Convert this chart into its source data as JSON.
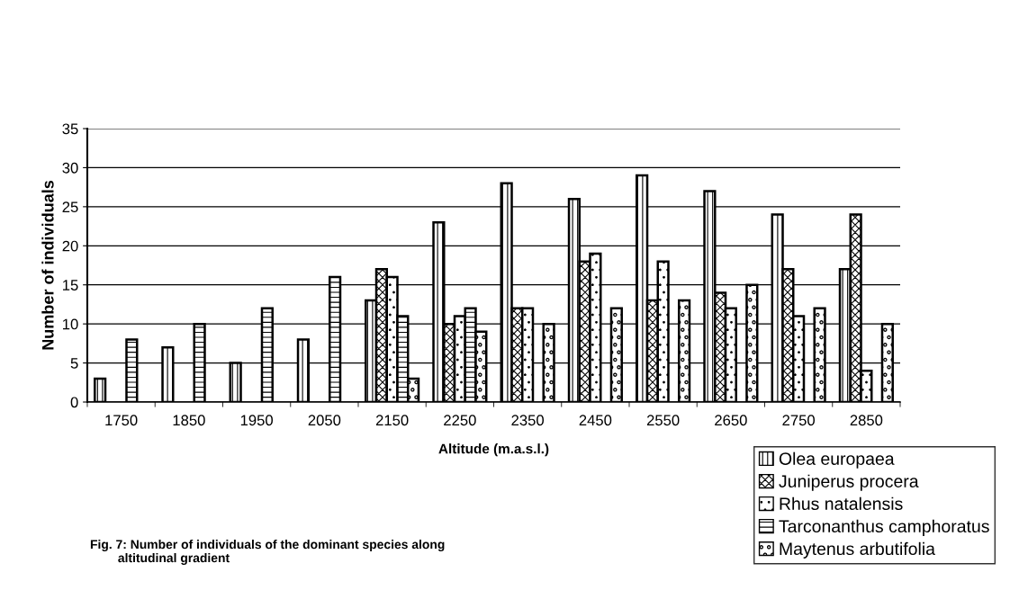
{
  "chart_data": {
    "type": "bar",
    "xlabel": "Altitude (m.a.s.l.)",
    "ylabel": "Number of individuals",
    "annotations": [
      "Fig. 7: Number of individuals of the dominant species along\n        altitudinal gradient"
    ],
    "categories": [
      "1750",
      "1850",
      "1950",
      "2050",
      "2150",
      "2250",
      "2350",
      "2450",
      "2550",
      "2650",
      "2750",
      "2850"
    ],
    "series": [
      {
        "name": "Olea europaea",
        "color": "#000000",
        "values": [
          3,
          7,
          5,
          8,
          13,
          23,
          28,
          26,
          29,
          27,
          24,
          17
        ]
      },
      {
        "name": "Juniperus procera",
        "color": "#000000",
        "values": [
          null,
          null,
          null,
          null,
          17,
          10,
          12,
          18,
          13,
          14,
          17,
          24
        ]
      },
      {
        "name": "Rhus natalensis",
        "color": "#000000",
        "values": [
          null,
          null,
          null,
          null,
          16,
          11,
          12,
          19,
          18,
          12,
          11,
          4
        ]
      },
      {
        "name": "Tarconanthus camphoratus",
        "color": "#000000",
        "values": [
          8,
          10,
          12,
          16,
          11,
          12,
          null,
          null,
          null,
          null,
          null,
          null
        ]
      },
      {
        "name": "Maytenus arbutifolia",
        "color": "#000000",
        "values": [
          null,
          null,
          null,
          null,
          3,
          9,
          10,
          12,
          13,
          15,
          12,
          10
        ]
      }
    ],
    "ylim": [
      0,
      35
    ],
    "yticks": [
      0,
      5,
      10,
      15,
      20,
      25,
      30,
      35
    ],
    "grid": "y",
    "legend": "bottom right"
  }
}
